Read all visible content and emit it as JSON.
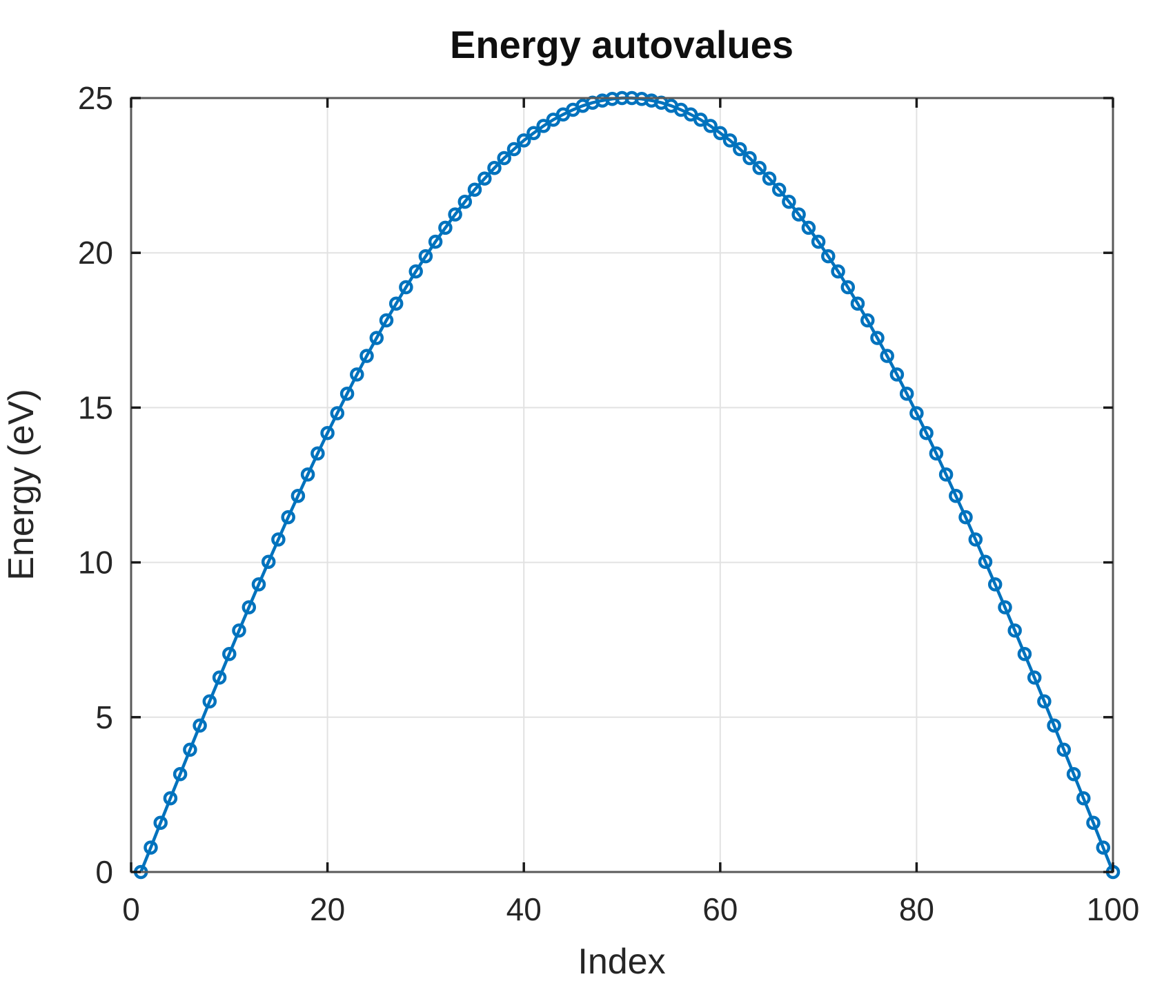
{
  "figure": {
    "background_color": "#ffffff"
  },
  "chart_data": {
    "type": "line",
    "title": "Energy autovalues",
    "xlabel": "Index",
    "ylabel": "Energy (eV)",
    "xlim": [
      0,
      100
    ],
    "ylim": [
      0,
      25
    ],
    "x_ticks": [
      0,
      20,
      40,
      60,
      80,
      100
    ],
    "y_ticks": [
      0,
      5,
      10,
      15,
      20,
      25
    ],
    "grid": true,
    "box": true,
    "legend_position": "none",
    "colors": {
      "series_blue": "#0072BD",
      "grid_color": "#e2e2e2",
      "frame_color": "#595959",
      "tick_color": "#1a1a1a",
      "text_color": "#262626"
    },
    "series": [
      {
        "name": "energy-autovalues",
        "marker": "open-circle",
        "line_style": "solid",
        "color": "#0072BD",
        "x_start": 1,
        "x_step": 1,
        "x_end": 100,
        "values": [
          0,
          0.79,
          1.59,
          2.38,
          3.16,
          3.95,
          4.73,
          5.51,
          6.28,
          7.04,
          7.8,
          8.55,
          9.29,
          10.02,
          10.74,
          11.46,
          12.15,
          12.84,
          13.52,
          14.18,
          14.82,
          15.45,
          16.07,
          16.67,
          17.25,
          17.82,
          18.36,
          18.89,
          19.4,
          19.89,
          20.36,
          20.81,
          21.24,
          21.65,
          22.04,
          22.4,
          22.74,
          23.06,
          23.35,
          23.63,
          23.87,
          24.1,
          24.3,
          24.47,
          24.62,
          24.75,
          24.85,
          24.92,
          24.97,
          25,
          25,
          24.97,
          24.92,
          24.85,
          24.75,
          24.62,
          24.47,
          24.3,
          24.1,
          23.87,
          23.63,
          23.35,
          23.06,
          22.74,
          22.4,
          22.04,
          21.65,
          21.24,
          20.81,
          20.36,
          19.89,
          19.4,
          18.89,
          18.36,
          17.82,
          17.25,
          16.67,
          16.07,
          15.45,
          14.82,
          14.18,
          13.52,
          12.84,
          12.15,
          11.46,
          10.74,
          10.02,
          9.29,
          8.55,
          7.8,
          7.04,
          6.28,
          5.51,
          4.73,
          3.95,
          3.16,
          2.38,
          1.59,
          0.79,
          0
        ]
      }
    ]
  }
}
